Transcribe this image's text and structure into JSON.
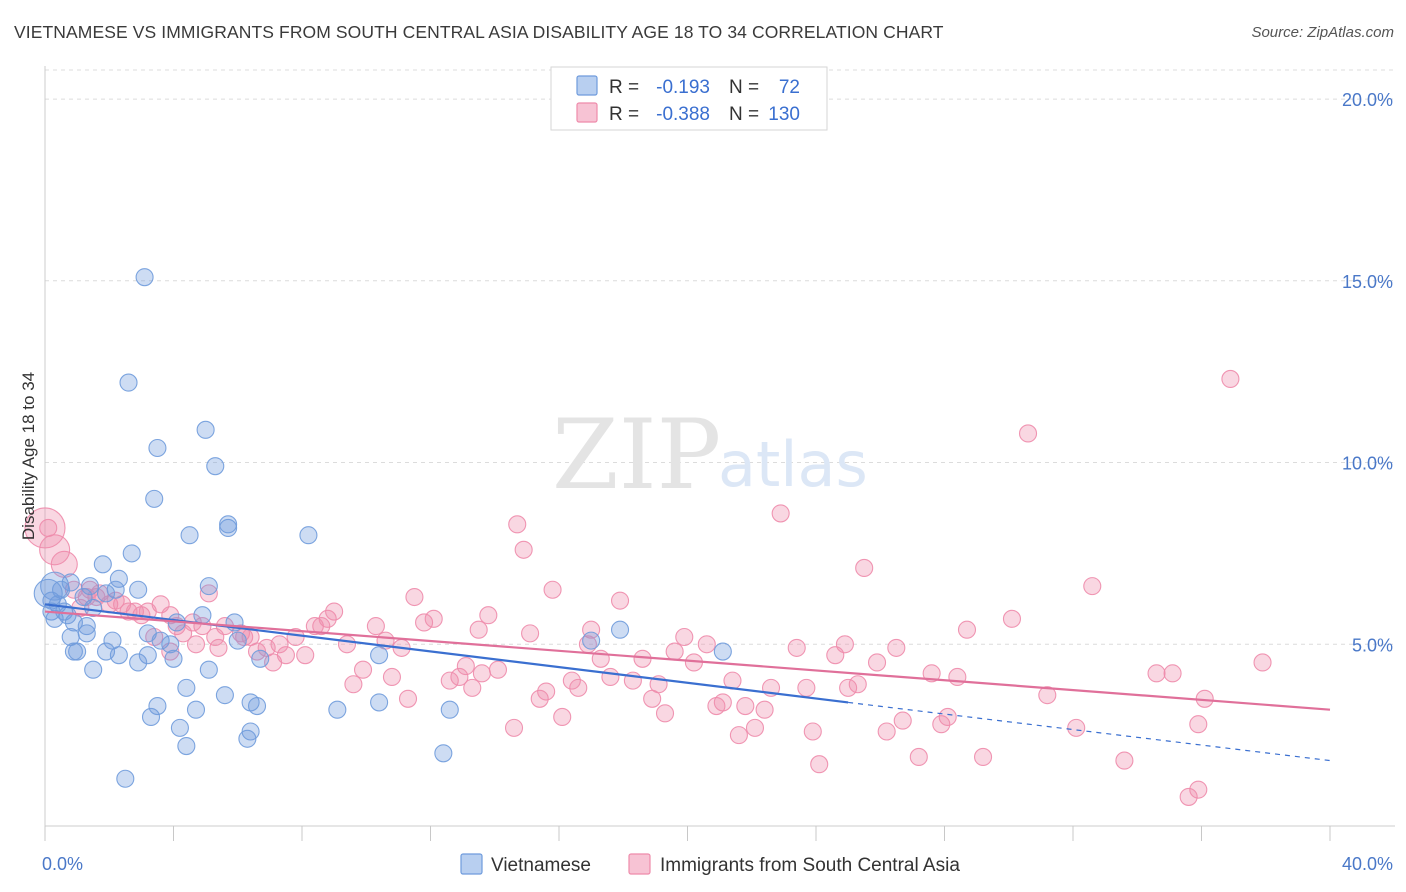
{
  "header": {
    "title": "VIETNAMESE VS IMMIGRANTS FROM SOUTH CENTRAL ASIA DISABILITY AGE 18 TO 34 CORRELATION CHART",
    "source": "Source: ZipAtlas.com"
  },
  "watermark": {
    "zip": "ZIP",
    "atlas": "atlas"
  },
  "stats": [
    {
      "r_label": "R =",
      "r_value": "-0.193",
      "n_label": "N =",
      "n_value": "72",
      "color": "#6f9bdc"
    },
    {
      "r_label": "R =",
      "r_value": "-0.388",
      "n_label": "N =",
      "n_value": "130",
      "color": "#ee8bab"
    }
  ],
  "legend": [
    {
      "label": "Vietnamese",
      "color": "#6f9bdc"
    },
    {
      "label": "Immigrants from South Central Asia",
      "color": "#ee8bab"
    }
  ],
  "chart_data": {
    "type": "scatter",
    "ylabel": "Disability Age 18 to 34",
    "xlim": [
      0,
      40
    ],
    "ylim": [
      0,
      20.8
    ],
    "y_ticks": [
      5,
      10,
      15,
      20
    ],
    "y_tick_labels": [
      "5.0%",
      "10.0%",
      "15.0%",
      "20.0%"
    ],
    "x_tick_labels": [
      "0.0%",
      "40.0%"
    ],
    "grid": true,
    "colors": {
      "vietnamese": "#6f9bdc",
      "immigrants": "#ee8bab",
      "vietnamese_line": "#3a6fd0",
      "immigrants_line": "#e0709a"
    },
    "series": [
      {
        "name": "Vietnamese",
        "trend": {
          "x_start": 0,
          "y_start": 6.1,
          "x_end": 25,
          "y_end": 3.4,
          "dash_x_end": 40,
          "dash_y_end": 1.8
        },
        "points": [
          [
            3.1,
            15.1
          ],
          [
            2.6,
            12.2
          ],
          [
            5.0,
            10.9
          ],
          [
            3.5,
            10.4
          ],
          [
            5.3,
            9.9
          ],
          [
            3.4,
            9.0
          ],
          [
            5.7,
            8.3
          ],
          [
            5.7,
            8.2
          ],
          [
            4.5,
            8.0
          ],
          [
            8.2,
            8.0
          ],
          [
            2.7,
            7.5
          ],
          [
            1.8,
            7.2
          ],
          [
            2.3,
            6.8
          ],
          [
            1.4,
            6.6
          ],
          [
            0.8,
            6.7
          ],
          [
            0.3,
            6.6
          ],
          [
            5.1,
            6.6
          ],
          [
            0.5,
            6.5
          ],
          [
            2.2,
            6.5
          ],
          [
            2.9,
            6.5
          ],
          [
            1.9,
            6.4
          ],
          [
            1.2,
            6.3
          ],
          [
            0.2,
            6.2
          ],
          [
            0.4,
            6.1
          ],
          [
            0.6,
            5.9
          ],
          [
            1.5,
            6.0
          ],
          [
            0.7,
            5.8
          ],
          [
            0.3,
            5.7
          ],
          [
            0.9,
            5.6
          ],
          [
            1.3,
            5.5
          ],
          [
            4.9,
            5.8
          ],
          [
            5.9,
            5.6
          ],
          [
            4.1,
            5.6
          ],
          [
            17.9,
            5.4
          ],
          [
            1.3,
            5.3
          ],
          [
            0.8,
            5.2
          ],
          [
            2.1,
            5.1
          ],
          [
            3.2,
            5.3
          ],
          [
            3.6,
            5.1
          ],
          [
            3.9,
            5.0
          ],
          [
            6.0,
            5.1
          ],
          [
            1.0,
            4.8
          ],
          [
            0.9,
            4.8
          ],
          [
            1.9,
            4.8
          ],
          [
            2.3,
            4.7
          ],
          [
            3.2,
            4.7
          ],
          [
            4.0,
            4.6
          ],
          [
            6.7,
            4.6
          ],
          [
            10.4,
            4.7
          ],
          [
            17.0,
            5.1
          ],
          [
            21.1,
            4.8
          ],
          [
            2.9,
            4.5
          ],
          [
            1.5,
            4.3
          ],
          [
            5.1,
            4.3
          ],
          [
            4.4,
            3.8
          ],
          [
            5.6,
            3.6
          ],
          [
            6.4,
            3.4
          ],
          [
            6.6,
            3.3
          ],
          [
            3.5,
            3.3
          ],
          [
            4.7,
            3.2
          ],
          [
            9.1,
            3.2
          ],
          [
            10.4,
            3.4
          ],
          [
            12.6,
            3.2
          ],
          [
            3.3,
            3.0
          ],
          [
            6.4,
            2.6
          ],
          [
            4.2,
            2.7
          ],
          [
            6.3,
            2.4
          ],
          [
            4.4,
            2.2
          ],
          [
            12.4,
            2.0
          ],
          [
            2.5,
            1.3
          ],
          [
            0.1,
            6.4
          ],
          [
            0.2,
            5.9
          ]
        ]
      },
      {
        "name": "Immigrants from South Central Asia",
        "trend": {
          "x_start": 0,
          "y_start": 5.9,
          "x_end": 40,
          "y_end": 3.2
        },
        "points": [
          [
            0.0,
            8.2
          ],
          [
            0.3,
            7.6
          ],
          [
            0.6,
            7.2
          ],
          [
            1.4,
            6.5
          ],
          [
            1.7,
            6.4
          ],
          [
            2.2,
            6.2
          ],
          [
            2.4,
            6.1
          ],
          [
            1.3,
            6.3
          ],
          [
            2.8,
            5.9
          ],
          [
            3.0,
            5.8
          ],
          [
            3.6,
            6.1
          ],
          [
            3.2,
            5.9
          ],
          [
            3.9,
            5.8
          ],
          [
            4.1,
            5.5
          ],
          [
            4.6,
            5.6
          ],
          [
            4.9,
            5.5
          ],
          [
            5.3,
            5.2
          ],
          [
            5.6,
            5.5
          ],
          [
            6.1,
            5.3
          ],
          [
            6.4,
            5.2
          ],
          [
            4.7,
            5.0
          ],
          [
            5.4,
            4.9
          ],
          [
            6.9,
            4.9
          ],
          [
            7.3,
            5.0
          ],
          [
            7.8,
            5.2
          ],
          [
            8.1,
            4.7
          ],
          [
            8.6,
            5.5
          ],
          [
            9.0,
            5.9
          ],
          [
            9.4,
            5.0
          ],
          [
            9.9,
            4.3
          ],
          [
            10.3,
            5.5
          ],
          [
            10.6,
            5.1
          ],
          [
            11.1,
            4.9
          ],
          [
            11.5,
            6.3
          ],
          [
            11.8,
            5.6
          ],
          [
            12.1,
            5.7
          ],
          [
            12.6,
            4.0
          ],
          [
            13.1,
            4.4
          ],
          [
            13.5,
            5.4
          ],
          [
            13.8,
            5.8
          ],
          [
            14.1,
            4.3
          ],
          [
            14.6,
            2.7
          ],
          [
            14.9,
            7.6
          ],
          [
            14.7,
            8.3
          ],
          [
            15.1,
            5.3
          ],
          [
            15.4,
            3.5
          ],
          [
            15.8,
            6.5
          ],
          [
            16.1,
            3.0
          ],
          [
            16.4,
            4.0
          ],
          [
            16.6,
            3.8
          ],
          [
            17.0,
            5.4
          ],
          [
            17.3,
            4.6
          ],
          [
            17.6,
            4.1
          ],
          [
            17.9,
            6.2
          ],
          [
            18.3,
            4.0
          ],
          [
            18.6,
            4.6
          ],
          [
            19.1,
            3.9
          ],
          [
            19.6,
            4.8
          ],
          [
            19.9,
            5.2
          ],
          [
            20.2,
            4.5
          ],
          [
            20.6,
            5.0
          ],
          [
            21.1,
            3.4
          ],
          [
            21.4,
            4.0
          ],
          [
            21.8,
            3.3
          ],
          [
            22.1,
            2.7
          ],
          [
            22.6,
            3.8
          ],
          [
            22.9,
            8.6
          ],
          [
            23.4,
            4.9
          ],
          [
            23.7,
            3.8
          ],
          [
            24.1,
            1.7
          ],
          [
            24.6,
            4.7
          ],
          [
            25.0,
            3.8
          ],
          [
            25.5,
            7.1
          ],
          [
            25.9,
            4.5
          ],
          [
            26.2,
            2.6
          ],
          [
            26.7,
            2.9
          ],
          [
            27.2,
            1.9
          ],
          [
            27.6,
            4.2
          ],
          [
            28.1,
            3.0
          ],
          [
            28.7,
            5.4
          ],
          [
            29.2,
            1.9
          ],
          [
            30.1,
            5.7
          ],
          [
            30.6,
            10.8
          ],
          [
            31.2,
            3.6
          ],
          [
            32.1,
            2.7
          ],
          [
            32.6,
            6.6
          ],
          [
            33.6,
            1.8
          ],
          [
            34.6,
            4.2
          ],
          [
            35.1,
            4.2
          ],
          [
            35.6,
            0.8
          ],
          [
            35.9,
            1.0
          ],
          [
            36.1,
            3.5
          ],
          [
            37.9,
            4.5
          ],
          [
            36.9,
            12.3
          ],
          [
            35.9,
            2.8
          ],
          [
            7.5,
            4.7
          ],
          [
            8.8,
            5.7
          ],
          [
            6.6,
            4.8
          ],
          [
            2.6,
            5.9
          ],
          [
            1.1,
            6.0
          ],
          [
            5.1,
            6.4
          ],
          [
            3.9,
            4.8
          ],
          [
            2.0,
            6.1
          ],
          [
            9.6,
            3.9
          ],
          [
            10.8,
            4.1
          ],
          [
            12.9,
            4.1
          ],
          [
            13.3,
            3.8
          ],
          [
            15.6,
            3.7
          ],
          [
            18.9,
            3.5
          ],
          [
            20.9,
            3.3
          ],
          [
            22.4,
            3.2
          ],
          [
            24.9,
            5.0
          ],
          [
            26.5,
            4.9
          ],
          [
            28.4,
            4.1
          ],
          [
            1.6,
            6.3
          ],
          [
            4.3,
            5.3
          ],
          [
            7.1,
            4.5
          ],
          [
            11.3,
            3.5
          ],
          [
            16.9,
            5.0
          ],
          [
            19.3,
            3.1
          ],
          [
            23.9,
            2.6
          ],
          [
            27.9,
            2.8
          ],
          [
            0.1,
            8.2
          ],
          [
            0.9,
            6.5
          ],
          [
            3.4,
            5.2
          ],
          [
            6.2,
            5.2
          ],
          [
            8.4,
            5.5
          ],
          [
            13.6,
            4.2
          ],
          [
            21.6,
            2.5
          ],
          [
            25.3,
            3.9
          ]
        ]
      }
    ]
  }
}
